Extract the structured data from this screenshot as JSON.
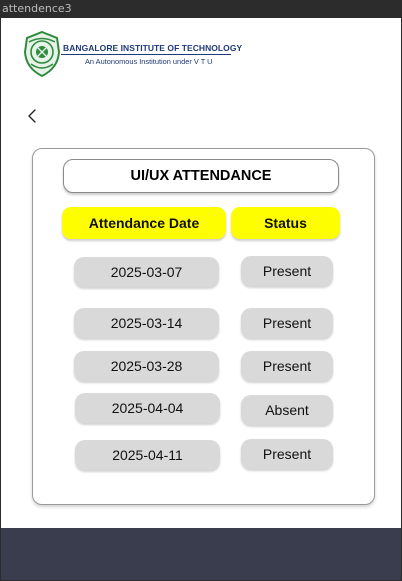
{
  "window": {
    "title": "attendence3"
  },
  "header": {
    "institution_name": "BANGALORE INSTITUTE OF TECHNOLOGY",
    "institution_subtitle": "An Autonomous Institution under V T U",
    "emblem_icon": "bit-emblem-icon"
  },
  "nav": {
    "back_icon": "chevron-left-icon"
  },
  "attendance": {
    "title": "UI/UX ATTENDANCE",
    "columns": {
      "date": "Attendance Date",
      "status": "Status"
    },
    "records": [
      {
        "date": "2025-03-07",
        "status": "Present"
      },
      {
        "date": "2025-03-14",
        "status": "Present"
      },
      {
        "date": "2025-03-28",
        "status": "Present"
      },
      {
        "date": "2025-04-04",
        "status": "Absent"
      },
      {
        "date": "2025-04-11",
        "status": "Present"
      }
    ]
  },
  "colors": {
    "header_highlight": "#fffe00",
    "pill": "#d9d9d9",
    "footer": "#3a3d4d",
    "brand_blue": "#1f3a7a",
    "emblem_green": "#2e8b3e"
  }
}
